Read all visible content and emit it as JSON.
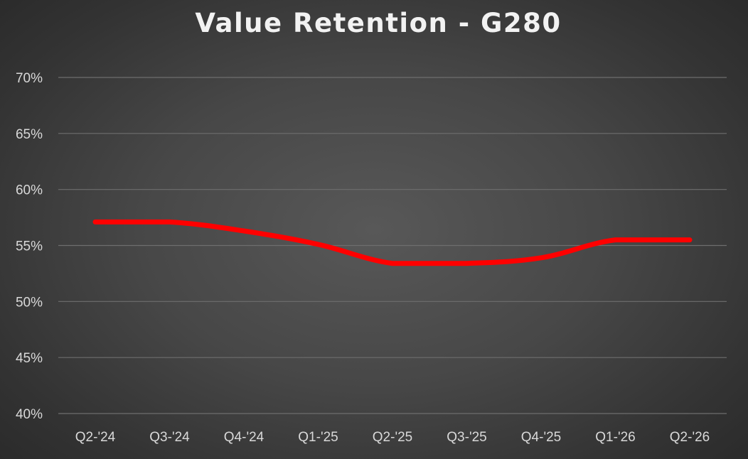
{
  "chart_data": {
    "type": "line",
    "title": "Value Retention - G280",
    "categories": [
      "Q2-'24",
      "Q3-'24",
      "Q4-'24",
      "Q1-'25",
      "Q2-'25",
      "Q3-'25",
      "Q4-'25",
      "Q1-'26",
      "Q2-'26"
    ],
    "series": [
      {
        "values": [
          57.1,
          57.1,
          56.3,
          55.1,
          53.4,
          53.4,
          53.9,
          55.5,
          55.5
        ],
        "color": "#ff0000"
      }
    ],
    "y_ticks": [
      "40%",
      "45%",
      "50%",
      "55%",
      "60%",
      "65%",
      "70%"
    ],
    "ylim": [
      40,
      70
    ],
    "grid": true,
    "legend": "none"
  }
}
